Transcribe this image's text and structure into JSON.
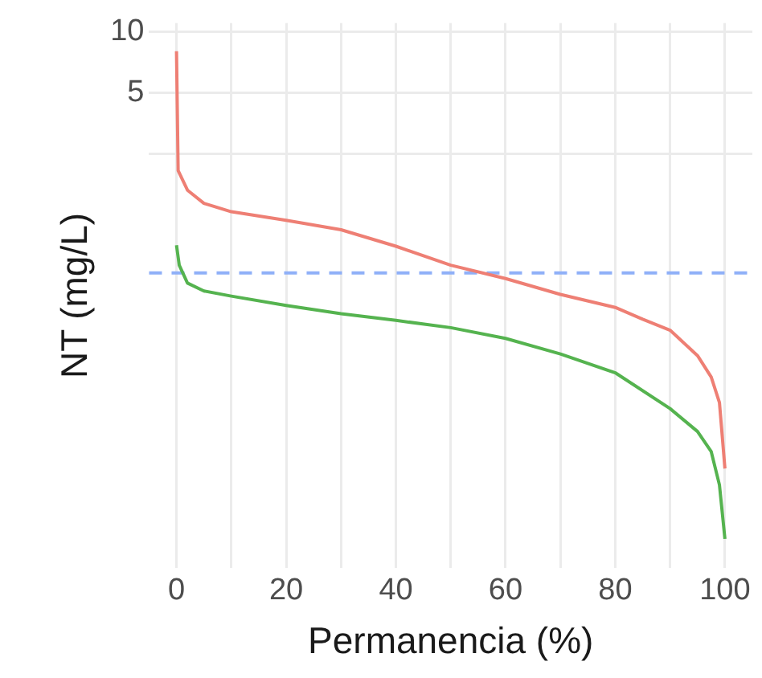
{
  "chart_data": {
    "type": "line",
    "xlabel": "Permanencia (%)",
    "ylabel": "NT (mg/L)",
    "log": "y",
    "x": [
      0,
      0.3,
      2,
      5,
      10,
      20,
      30,
      40,
      50,
      60,
      70,
      80,
      85,
      90,
      95,
      97.5,
      99,
      100
    ],
    "series": [
      {
        "color": "#ee7f74",
        "values": [
          8.0,
          2.07,
          1.66,
          1.43,
          1.3,
          1.18,
          1.06,
          0.88,
          0.71,
          0.61,
          0.51,
          0.44,
          0.385,
          0.34,
          0.255,
          0.2,
          0.15,
          0.071
        ]
      },
      {
        "color": "#55b34f",
        "x": [
          0,
          0.5,
          2,
          5,
          10,
          20,
          30,
          40,
          50,
          60,
          70,
          80,
          90,
          95,
          97.5,
          99,
          100
        ],
        "values": [
          0.89,
          0.71,
          0.58,
          0.53,
          0.5,
          0.45,
          0.41,
          0.38,
          0.35,
          0.31,
          0.26,
          0.21,
          0.14,
          0.108,
          0.086,
          0.059,
          0.032
        ]
      }
    ],
    "xlim": [
      -5,
      105
    ],
    "xticks": [
      0,
      {
        "value": 10,
        "label": null
      },
      20,
      {
        "value": 30,
        "label": null
      },
      40,
      {
        "value": 50,
        "label": null
      },
      60,
      {
        "value": 70,
        "label": null
      },
      80,
      {
        "value": 90,
        "label": null
      },
      100
    ],
    "ylim": [
      0.023,
      11
    ],
    "yticks": [
      10,
      5,
      {
        "value": 2.5,
        "label": null
      }
    ],
    "grid": true,
    "line_style": "solid",
    "marker": "none",
    "ref_lines": [
      {
        "axis": "y",
        "value": 0.65,
        "color": "#8fb0f8",
        "line_style": "dashed"
      }
    ]
  }
}
